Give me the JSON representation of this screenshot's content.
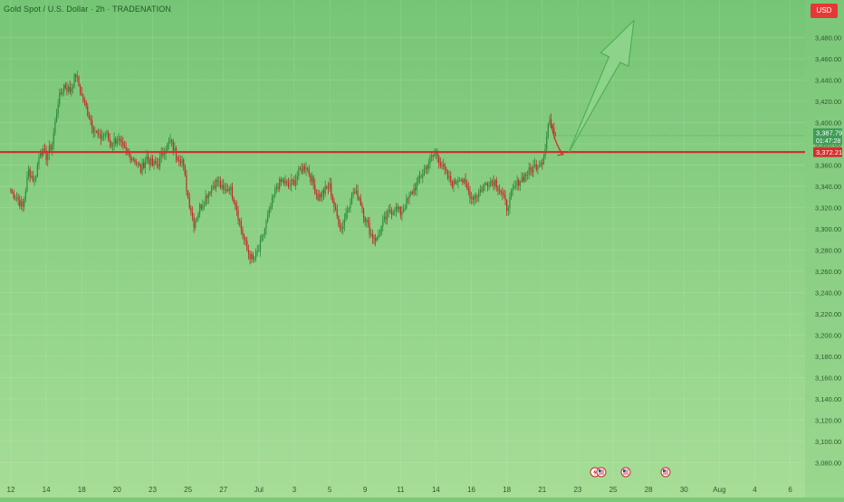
{
  "header": {
    "symbol_title": "Gold Spot / U.S. Dollar · 2h · TRADENATION",
    "currency": "USD"
  },
  "price_labels": {
    "current_price": "3,387.79",
    "countdown": "01:47:28",
    "level_price": "3,372.21"
  },
  "colors": {
    "background": "#7cc97a",
    "up_candle": "#2e8b3d",
    "down_candle": "#c62828",
    "resistance_line": "#d32f2f",
    "arrow_fill": "#8fd48c",
    "arrow_stroke": "#4caf50",
    "current_price_label": "#3f9d57",
    "level_label": "#d32f2f",
    "axis_text": "#2d5a2d"
  },
  "event_icons": [
    "lightning-flag-icon",
    "us-flag-icon",
    "us-flag-icon",
    "us-flag-icon"
  ],
  "chart_data": {
    "type": "candlestick",
    "title": "Gold Spot / U.S. Dollar · 2h · TRADENATION",
    "ylim": [
      3070,
      3510
    ],
    "y_ticks": [
      3080,
      3100,
      3120,
      3140,
      3160,
      3180,
      3200,
      3220,
      3240,
      3260,
      3280,
      3300,
      3320,
      3340,
      3360,
      3380,
      3400,
      3420,
      3440,
      3460,
      3480
    ],
    "y_tick_labels": [
      "3,080.00",
      "3,100.00",
      "3,120.00",
      "3,140.00",
      "3,160.00",
      "3,180.00",
      "3,200.00",
      "3,220.00",
      "3,240.00",
      "3,260.00",
      "3,280.00",
      "3,300.00",
      "3,320.00",
      "3,340.00",
      "3,360.00",
      "3,380.00",
      "3,400.00",
      "3,420.00",
      "3,440.00",
      "3,460.00",
      "3,480.00"
    ],
    "x_labels": [
      "12",
      "14",
      "18",
      "20",
      "23",
      "25",
      "27",
      "Jul",
      "3",
      "5",
      "9",
      "11",
      "14",
      "16",
      "18",
      "21",
      "23",
      "25",
      "28",
      "30",
      "Aug",
      "4",
      "6"
    ],
    "x_label_index": [
      0,
      24,
      48,
      72,
      96,
      120,
      144,
      168,
      192,
      216,
      240,
      264,
      288,
      312,
      336,
      360,
      384,
      408,
      432,
      456,
      480,
      504,
      528
    ],
    "resistance_level": 3372.21,
    "current_price": 3387.79,
    "projection_arrow": {
      "from": {
        "index": 378,
        "price": 3372
      },
      "to": {
        "index": 422,
        "price": 3496
      }
    },
    "short_arrow": {
      "from": {
        "index": 366,
        "price": 3400
      },
      "to": {
        "index": 374,
        "price": 3370
      }
    },
    "anchors": [
      [
        0,
        3335
      ],
      [
        4,
        3330
      ],
      [
        8,
        3320
      ],
      [
        12,
        3355
      ],
      [
        16,
        3345
      ],
      [
        20,
        3375
      ],
      [
        24,
        3368
      ],
      [
        28,
        3380
      ],
      [
        32,
        3420
      ],
      [
        36,
        3435
      ],
      [
        40,
        3430
      ],
      [
        44,
        3445
      ],
      [
        48,
        3425
      ],
      [
        52,
        3410
      ],
      [
        56,
        3395
      ],
      [
        60,
        3385
      ],
      [
        64,
        3390
      ],
      [
        68,
        3380
      ],
      [
        72,
        3385
      ],
      [
        76,
        3375
      ],
      [
        80,
        3370
      ],
      [
        84,
        3365
      ],
      [
        88,
        3355
      ],
      [
        92,
        3368
      ],
      [
        96,
        3360
      ],
      [
        100,
        3362
      ],
      [
        104,
        3375
      ],
      [
        108,
        3382
      ],
      [
        112,
        3370
      ],
      [
        116,
        3365
      ],
      [
        120,
        3330
      ],
      [
        124,
        3305
      ],
      [
        128,
        3320
      ],
      [
        132,
        3330
      ],
      [
        136,
        3340
      ],
      [
        140,
        3345
      ],
      [
        144,
        3335
      ],
      [
        148,
        3340
      ],
      [
        152,
        3325
      ],
      [
        156,
        3300
      ],
      [
        160,
        3280
      ],
      [
        164,
        3270
      ],
      [
        168,
        3280
      ],
      [
        172,
        3300
      ],
      [
        176,
        3320
      ],
      [
        180,
        3340
      ],
      [
        184,
        3345
      ],
      [
        188,
        3340
      ],
      [
        192,
        3345
      ],
      [
        196,
        3355
      ],
      [
        200,
        3360
      ],
      [
        204,
        3345
      ],
      [
        208,
        3330
      ],
      [
        212,
        3335
      ],
      [
        216,
        3340
      ],
      [
        220,
        3315
      ],
      [
        224,
        3300
      ],
      [
        228,
        3320
      ],
      [
        232,
        3335
      ],
      [
        236,
        3330
      ],
      [
        240,
        3310
      ],
      [
        244,
        3295
      ],
      [
        248,
        3290
      ],
      [
        252,
        3305
      ],
      [
        256,
        3315
      ],
      [
        260,
        3320
      ],
      [
        264,
        3315
      ],
      [
        268,
        3325
      ],
      [
        272,
        3335
      ],
      [
        276,
        3345
      ],
      [
        280,
        3355
      ],
      [
        284,
        3365
      ],
      [
        288,
        3372
      ],
      [
        292,
        3360
      ],
      [
        296,
        3348
      ],
      [
        300,
        3342
      ],
      [
        304,
        3350
      ],
      [
        308,
        3340
      ],
      [
        312,
        3330
      ],
      [
        316,
        3332
      ],
      [
        320,
        3340
      ],
      [
        324,
        3345
      ],
      [
        328,
        3345
      ],
      [
        332,
        3335
      ],
      [
        336,
        3320
      ],
      [
        340,
        3335
      ],
      [
        344,
        3345
      ],
      [
        348,
        3350
      ],
      [
        352,
        3355
      ],
      [
        356,
        3360
      ],
      [
        360,
        3365
      ],
      [
        362,
        3375
      ],
      [
        364,
        3398
      ],
      [
        366,
        3400
      ],
      [
        368,
        3392
      ],
      [
        369,
        3388
      ]
    ]
  }
}
